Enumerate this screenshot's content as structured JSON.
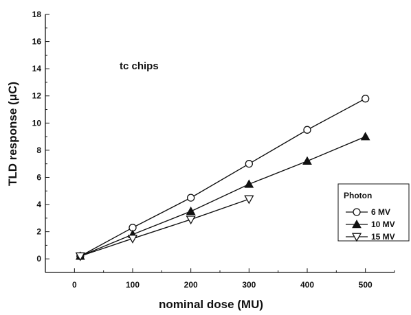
{
  "chart_data": {
    "type": "line",
    "title": "",
    "annotation": "tc chips",
    "xlabel": "nominal dose (MU)",
    "ylabel": "TLD response (μC)",
    "xlim": [
      -50,
      550
    ],
    "ylim": [
      -1,
      18
    ],
    "xticks": [
      0,
      100,
      200,
      300,
      400,
      500
    ],
    "yticks": [
      0,
      2,
      4,
      6,
      8,
      10,
      12,
      14,
      16,
      18
    ],
    "grid": false,
    "legend": {
      "title": "Photon",
      "position": "right"
    },
    "series": [
      {
        "name": "6 MV",
        "marker": "open-circle",
        "x": [
          10,
          100,
          200,
          300,
          400,
          500
        ],
        "y": [
          0.2,
          2.3,
          4.5,
          7.0,
          9.5,
          11.8
        ]
      },
      {
        "name": "10 MV",
        "marker": "filled-triangle-up",
        "x": [
          10,
          100,
          200,
          300,
          400,
          500
        ],
        "y": [
          0.2,
          1.8,
          3.5,
          5.5,
          7.2,
          9.0
        ]
      },
      {
        "name": "15 MV",
        "marker": "open-triangle-down",
        "x": [
          10,
          100,
          200,
          300
        ],
        "y": [
          0.2,
          1.5,
          2.9,
          4.4
        ]
      }
    ]
  }
}
